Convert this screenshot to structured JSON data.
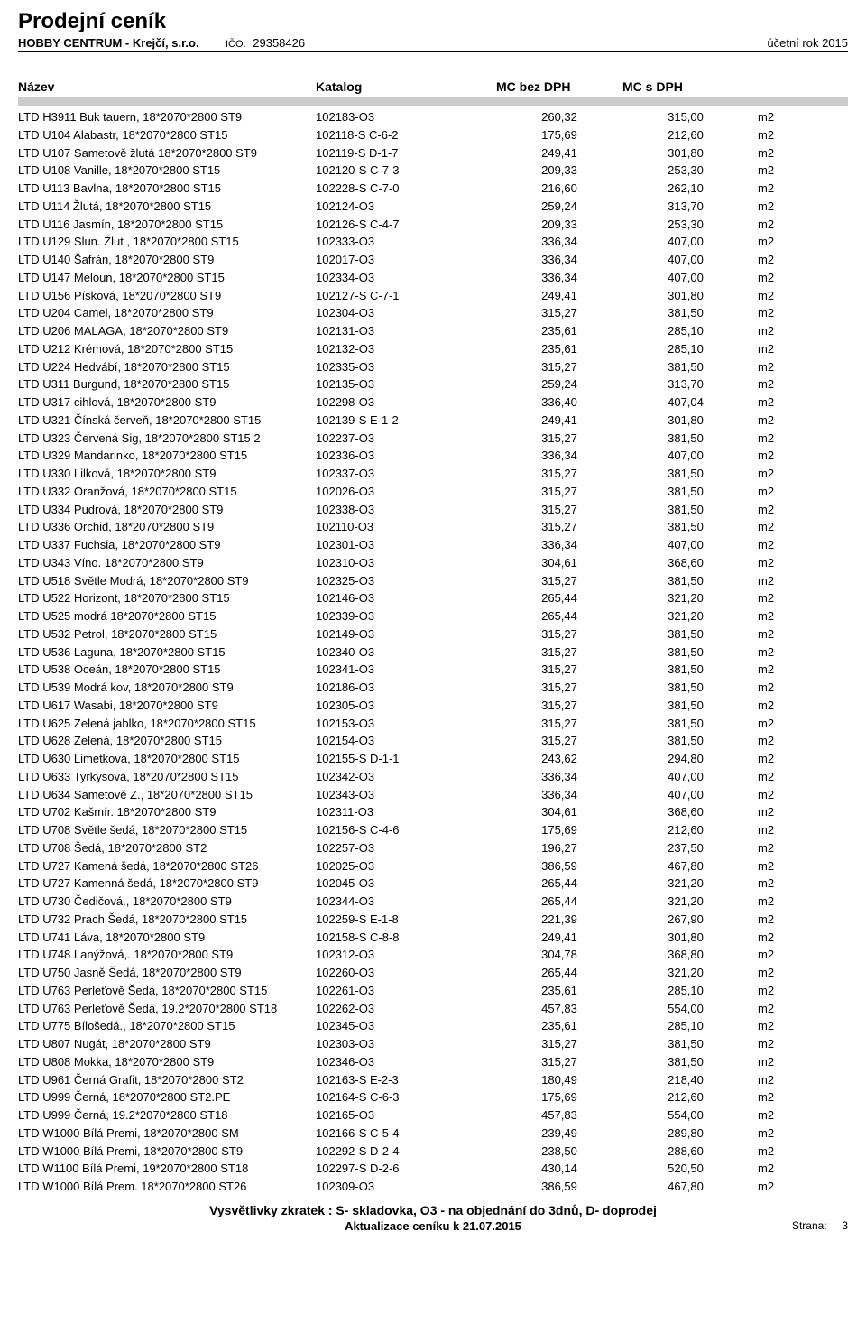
{
  "header": {
    "title": "Prodejní ceník",
    "company": "HOBBY CENTRUM - Krejčí, s.r.o.",
    "ico_label": "IČO:",
    "ico": "29358426",
    "year": "účetní rok 2015"
  },
  "columns": {
    "name": "Název",
    "catalog": "Katalog",
    "mc_bez": "MC bez DPH",
    "mc_s": "MC s DPH"
  },
  "rows": [
    {
      "name": "LTD H3911 Buk tauern, 18*2070*2800 ST9",
      "catalog": "102183-O3",
      "bez": "260,32",
      "s": "315,00",
      "unit": "m2"
    },
    {
      "name": "LTD U104 Alabastr, 18*2070*2800 ST15",
      "catalog": "102118-S   C-6-2",
      "bez": "175,69",
      "s": "212,60",
      "unit": "m2"
    },
    {
      "name": "LTD U107 Sametově žlutá 18*2070*2800 ST9",
      "catalog": "102119-S   D-1-7",
      "bez": "249,41",
      "s": "301,80",
      "unit": "m2"
    },
    {
      "name": "LTD U108 Vanille, 18*2070*2800 ST15",
      "catalog": "102120-S   C-7-3",
      "bez": "209,33",
      "s": "253,30",
      "unit": "m2"
    },
    {
      "name": "LTD U113 Bavlna, 18*2070*2800 ST15",
      "catalog": "102228-S   C-7-0",
      "bez": "216,60",
      "s": "262,10",
      "unit": "m2"
    },
    {
      "name": "LTD U114 Žlutá, 18*2070*2800 ST15",
      "catalog": "102124-O3",
      "bez": "259,24",
      "s": "313,70",
      "unit": "m2"
    },
    {
      "name": "LTD U116 Jasmín, 18*2070*2800 ST15",
      "catalog": "102126-S   C-4-7",
      "bez": "209,33",
      "s": "253,30",
      "unit": "m2"
    },
    {
      "name": "LTD U129 Slun. Žlut , 18*2070*2800  ST15",
      "catalog": "102333-O3",
      "bez": "336,34",
      "s": "407,00",
      "unit": "m2"
    },
    {
      "name": "LTD U140 Šafrán, 18*2070*2800 ST9",
      "catalog": "102017-O3",
      "bez": "336,34",
      "s": "407,00",
      "unit": "m2"
    },
    {
      "name": "LTD U147 Meloun, 18*2070*2800  ST15",
      "catalog": "102334-O3",
      "bez": "336,34",
      "s": "407,00",
      "unit": "m2"
    },
    {
      "name": "LTD U156 Písková, 18*2070*2800 ST9",
      "catalog": "102127-S   C-7-1",
      "bez": "249,41",
      "s": "301,80",
      "unit": "m2"
    },
    {
      "name": "LTD U204 Camel, 18*2070*2800  ST9",
      "catalog": "102304-O3",
      "bez": "315,27",
      "s": "381,50",
      "unit": "m2"
    },
    {
      "name": "LTD U206 MALAGA, 18*2070*2800 ST9",
      "catalog": "102131-O3",
      "bez": "235,61",
      "s": "285,10",
      "unit": "m2"
    },
    {
      "name": "LTD U212 Krémová, 18*2070*2800 ST15",
      "catalog": "102132-O3",
      "bez": "235,61",
      "s": "285,10",
      "unit": "m2"
    },
    {
      "name": "LTD U224 Hedvábí, 18*2070*2800  ST15",
      "catalog": "102335-O3",
      "bez": "315,27",
      "s": "381,50",
      "unit": "m2"
    },
    {
      "name": "LTD U311 Burgund, 18*2070*2800 ST15",
      "catalog": "102135-O3",
      "bez": "259,24",
      "s": "313,70",
      "unit": "m2"
    },
    {
      "name": "LTD U317 cihlová, 18*2070*2800 ST9",
      "catalog": "102298-O3",
      "bez": "336,40",
      "s": "407,04",
      "unit": "m2"
    },
    {
      "name": "LTD U321 Čínská červeň, 18*2070*2800 ST15",
      "catalog": "102139-S   E-1-2",
      "bez": "249,41",
      "s": "301,80",
      "unit": "m2"
    },
    {
      "name": "LTD U323 Červená Sig, 18*2070*2800 ST15          2",
      "catalog": "102237-O3",
      "bez": "315,27",
      "s": "381,50",
      "unit": "m2"
    },
    {
      "name": "LTD U329 Mandarinko, 18*2070*2800  ST15",
      "catalog": "102336-O3",
      "bez": "336,34",
      "s": "407,00",
      "unit": "m2"
    },
    {
      "name": "LTD U330 Lilková, 18*2070*2800  ST9",
      "catalog": "102337-O3",
      "bez": "315,27",
      "s": "381,50",
      "unit": "m2"
    },
    {
      "name": "LTD U332 Oranžová, 18*2070*2800  ST15",
      "catalog": "102026-O3",
      "bez": "315,27",
      "s": "381,50",
      "unit": "m2"
    },
    {
      "name": "LTD U334 Pudrová, 18*2070*2800  ST9",
      "catalog": "102338-O3",
      "bez": "315,27",
      "s": "381,50",
      "unit": "m2"
    },
    {
      "name": "LTD U336 Orchid, 18*2070*2800 ST9",
      "catalog": "102110-O3",
      "bez": "315,27",
      "s": "381,50",
      "unit": "m2"
    },
    {
      "name": "LTD U337 Fuchsia, 18*2070*2800  ST9",
      "catalog": "102301-O3",
      "bez": "336,34",
      "s": "407,00",
      "unit": "m2"
    },
    {
      "name": "LTD U343 Víno. 18*2070*2800  ST9",
      "catalog": "102310-O3",
      "bez": "304,61",
      "s": "368,60",
      "unit": "m2"
    },
    {
      "name": "LTD U518 Světle Modrá, 18*2070*2800  ST9",
      "catalog": "102325-O3",
      "bez": "315,27",
      "s": "381,50",
      "unit": "m2"
    },
    {
      "name": "LTD U522 Horizont, 18*2070*2800 ST15",
      "catalog": "102146-O3",
      "bez": "265,44",
      "s": "321,20",
      "unit": "m2"
    },
    {
      "name": "LTD U525 modrá 18*2070*2800  ST15",
      "catalog": "102339-O3",
      "bez": "265,44",
      "s": "321,20",
      "unit": "m2"
    },
    {
      "name": "LTD U532 Petrol, 18*2070*2800 ST15",
      "catalog": "102149-O3",
      "bez": "315,27",
      "s": "381,50",
      "unit": "m2"
    },
    {
      "name": "LTD U536 Laguna, 18*2070*2800  ST15",
      "catalog": "102340-O3",
      "bez": "315,27",
      "s": "381,50",
      "unit": "m2"
    },
    {
      "name": "LTD U538 Oceán, 18*2070*2800  ST15",
      "catalog": "102341-O3",
      "bez": "315,27",
      "s": "381,50",
      "unit": "m2"
    },
    {
      "name": "LTD U539 Modrá kov, 18*2070*2800 ST9",
      "catalog": "102186-O3",
      "bez": "315,27",
      "s": "381,50",
      "unit": "m2"
    },
    {
      "name": "LTD U617 Wasabi, 18*2070*2800  ST9",
      "catalog": "102305-O3",
      "bez": "315,27",
      "s": "381,50",
      "unit": "m2"
    },
    {
      "name": "LTD U625 Zelená jablko, 18*2070*2800 ST15",
      "catalog": "102153-O3",
      "bez": "315,27",
      "s": "381,50",
      "unit": "m2"
    },
    {
      "name": "LTD U628 Zelená, 18*2070*2800 ST15",
      "catalog": "102154-O3",
      "bez": "315,27",
      "s": "381,50",
      "unit": "m2"
    },
    {
      "name": "LTD U630 Limetková, 18*2070*2800 ST15",
      "catalog": "102155-S   D-1-1",
      "bez": "243,62",
      "s": "294,80",
      "unit": "m2"
    },
    {
      "name": "LTD U633 Tyrkysová, 18*2070*2800  ST15",
      "catalog": "102342-O3",
      "bez": "336,34",
      "s": "407,00",
      "unit": "m2"
    },
    {
      "name": "LTD U634 Sametově Z., 18*2070*2800  ST15",
      "catalog": "102343-O3",
      "bez": "336,34",
      "s": "407,00",
      "unit": "m2"
    },
    {
      "name": "LTD U702 Kašmír. 18*2070*2800  ST9",
      "catalog": "102311-O3",
      "bez": "304,61",
      "s": "368,60",
      "unit": "m2"
    },
    {
      "name": "LTD U708 Světle šedá, 18*2070*2800 ST15",
      "catalog": "102156-S   C-4-6",
      "bez": "175,69",
      "s": "212,60",
      "unit": "m2"
    },
    {
      "name": "LTD U708 Šedá, 18*2070*2800 ST2",
      "catalog": "102257-O3",
      "bez": "196,27",
      "s": "237,50",
      "unit": "m2"
    },
    {
      "name": "LTD U727 Kamená šedá, 18*2070*2800 ST26",
      "catalog": "102025-O3",
      "bez": "386,59",
      "s": "467,80",
      "unit": "m2"
    },
    {
      "name": "LTD U727 Kamenná šedá, 18*2070*2800 ST9",
      "catalog": "102045-O3",
      "bez": "265,44",
      "s": "321,20",
      "unit": "m2"
    },
    {
      "name": "LTD U730 Čedičová., 18*2070*2800  ST9",
      "catalog": "102344-O3",
      "bez": "265,44",
      "s": "321,20",
      "unit": "m2"
    },
    {
      "name": "LTD U732 Prach Šedá, 18*2070*2800 ST15",
      "catalog": "102259-S   E-1-8",
      "bez": "221,39",
      "s": "267,90",
      "unit": "m2"
    },
    {
      "name": "LTD U741 Láva, 18*2070*2800 ST9",
      "catalog": "102158-S   C-8-8",
      "bez": "249,41",
      "s": "301,80",
      "unit": "m2"
    },
    {
      "name": "LTD U748 Lanýžová,. 18*2070*2800  ST9",
      "catalog": "102312-O3",
      "bez": "304,78",
      "s": "368,80",
      "unit": "m2"
    },
    {
      "name": "LTD U750 Jasně Šedá, 18*2070*2800 ST9",
      "catalog": "102260-O3",
      "bez": "265,44",
      "s": "321,20",
      "unit": "m2"
    },
    {
      "name": "LTD U763 Perleťově Šedá, 18*2070*2800 ST15",
      "catalog": "102261-O3",
      "bez": "235,61",
      "s": "285,10",
      "unit": "m2"
    },
    {
      "name": "LTD U763 Perleťově Šedá, 19.2*2070*2800 ST18",
      "catalog": "102262-O3",
      "bez": "457,83",
      "s": "554,00",
      "unit": "m2"
    },
    {
      "name": "LTD U775 Bílošedá., 18*2070*2800  ST15",
      "catalog": "102345-O3",
      "bez": "235,61",
      "s": "285,10",
      "unit": "m2"
    },
    {
      "name": "LTD U807 Nugát, 18*2070*2800  ST9",
      "catalog": "102303-O3",
      "bez": "315,27",
      "s": "381,50",
      "unit": "m2"
    },
    {
      "name": "LTD U808 Mokka, 18*2070*2800  ST9",
      "catalog": "102346-O3",
      "bez": "315,27",
      "s": "381,50",
      "unit": "m2"
    },
    {
      "name": "LTD U961 Černá Grafit, 18*2070*2800 ST2",
      "catalog": "102163-S   E-2-3",
      "bez": "180,49",
      "s": "218,40",
      "unit": "m2"
    },
    {
      "name": "LTD U999 Černá, 18*2070*2800 ST2.PE",
      "catalog": "102164-S   C-6-3",
      "bez": "175,69",
      "s": "212,60",
      "unit": "m2"
    },
    {
      "name": "LTD U999 Černá, 19.2*2070*2800 ST18",
      "catalog": "102165-O3",
      "bez": "457,83",
      "s": "554,00",
      "unit": "m2"
    },
    {
      "name": "LTD W1000 Bílá Premi, 18*2070*2800 SM",
      "catalog": "102166-S   C-5-4",
      "bez": "239,49",
      "s": "289,80",
      "unit": "m2"
    },
    {
      "name": "LTD W1000 Bílá Premi, 18*2070*2800 ST9",
      "catalog": "102292-S   D-2-4",
      "bez": "238,50",
      "s": "288,60",
      "unit": "m2"
    },
    {
      "name": "LTD W1100 Bílá Premi, 19*2070*2800 ST18",
      "catalog": "102297-S   D-2-6",
      "bez": "430,14",
      "s": "520,50",
      "unit": "m2"
    },
    {
      "name": "LTD W1000 Bílá Prem. 18*2070*2800  ST26",
      "catalog": "102309-O3",
      "bez": "386,59",
      "s": "467,80",
      "unit": "m2"
    }
  ],
  "footer": {
    "legend": "Vysvětlivky zkratek :  S- skladovka,  O3 - na objednání do 3dnů,  D- doprodej",
    "update": "Aktualizace ceníku  k   21.07.2015",
    "page_label": "Strana:",
    "page_num": "3"
  },
  "style": {
    "header_bar_color": "#cccccc",
    "text_color": "#000000",
    "background": "#ffffff",
    "title_fontsize": 24,
    "body_fontsize": 13
  }
}
